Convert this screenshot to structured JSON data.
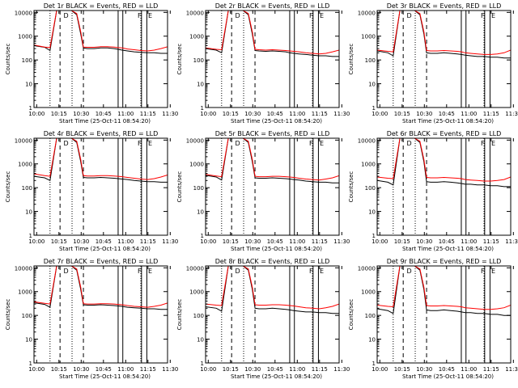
{
  "chart_data": {
    "type": "line",
    "shared": {
      "ylabel": "Counts/sec",
      "xlabel": "Start Time (25-Oct-11 08:54:20)",
      "x_ticks": [
        "10:00",
        "10:15",
        "10:30",
        "10:45",
        "11:00",
        "11:15",
        "11:30"
      ],
      "y_ticks": [
        "1",
        "10",
        "100",
        "1000",
        "10000"
      ],
      "ylim": [
        1,
        12000
      ],
      "xlim_minutes": [
        0,
        100
      ],
      "series_names": [
        "Events",
        "LLD"
      ],
      "series_colors": {
        "Events": "#000000",
        "LLD": "#ff0000"
      },
      "dotted_lines_min": [
        12,
        28.5,
        80
      ],
      "dashed_lines_min": [
        19.5,
        37
      ],
      "solid_lines_min": [
        63,
        66.5,
        80.5,
        84.5
      ],
      "markers": [
        "D",
        "F",
        "E"
      ],
      "sample_times_min": [
        0,
        8,
        12,
        17,
        19,
        20,
        22,
        24,
        26,
        28,
        32,
        35,
        37,
        40,
        45,
        50,
        55,
        60,
        63,
        66,
        70,
        75,
        80,
        85,
        90,
        95,
        100
      ]
    },
    "panels": [
      {
        "title": "Det 1r BLACK = Events, RED = LLD",
        "lld": [
          420,
          350,
          330,
          12000,
          12000,
          12000,
          12000,
          12000,
          12000,
          12000,
          9000,
          1500,
          350,
          340,
          340,
          360,
          360,
          350,
          330,
          320,
          290,
          270,
          250,
          240,
          260,
          300,
          360
        ],
        "events": [
          400,
          340,
          250,
          12000,
          12000,
          12000,
          12000,
          12000,
          12000,
          12000,
          8000,
          1200,
          320,
          300,
          300,
          320,
          320,
          300,
          280,
          260,
          240,
          220,
          210,
          200,
          200,
          190,
          190
        ]
      },
      {
        "title": "Det 2r BLACK = Events, RED = LLD",
        "lld": [
          320,
          280,
          270,
          12000,
          12000,
          12000,
          12000,
          12000,
          12000,
          12000,
          9000,
          1500,
          280,
          270,
          260,
          270,
          260,
          250,
          240,
          230,
          220,
          200,
          190,
          180,
          190,
          220,
          260
        ],
        "events": [
          300,
          260,
          200,
          12000,
          12000,
          12000,
          12000,
          12000,
          12000,
          12000,
          8000,
          1200,
          250,
          240,
          230,
          240,
          230,
          220,
          200,
          190,
          180,
          170,
          160,
          150,
          150,
          140,
          140
        ]
      },
      {
        "title": "Det 3r BLACK = Events, RED = LLD",
        "lld": [
          260,
          230,
          220,
          12000,
          12000,
          12000,
          12000,
          12000,
          12000,
          12000,
          9000,
          1500,
          250,
          240,
          240,
          250,
          240,
          230,
          220,
          200,
          190,
          180,
          170,
          170,
          180,
          200,
          260
        ],
        "events": [
          240,
          200,
          150,
          12000,
          12000,
          12000,
          12000,
          12000,
          12000,
          12000,
          8000,
          1200,
          200,
          190,
          190,
          200,
          190,
          180,
          170,
          160,
          150,
          140,
          140,
          130,
          130,
          120,
          120
        ]
      },
      {
        "title": "Det 4r BLACK = Events, RED = LLD",
        "lld": [
          380,
          320,
          300,
          12000,
          12000,
          12000,
          12000,
          12000,
          12000,
          12000,
          9000,
          1500,
          320,
          310,
          310,
          320,
          320,
          310,
          300,
          290,
          270,
          250,
          230,
          220,
          240,
          280,
          340
        ],
        "events": [
          300,
          260,
          200,
          12000,
          12000,
          12000,
          12000,
          12000,
          12000,
          12000,
          8000,
          1200,
          270,
          260,
          260,
          270,
          260,
          250,
          240,
          230,
          220,
          200,
          190,
          180,
          180,
          170,
          170
        ]
      },
      {
        "title": "Det 5r BLACK = Events, RED = LLD",
        "lld": [
          360,
          310,
          290,
          12000,
          12000,
          12000,
          12000,
          12000,
          12000,
          12000,
          9000,
          1500,
          300,
          290,
          290,
          300,
          300,
          290,
          280,
          270,
          250,
          230,
          220,
          210,
          230,
          260,
          320
        ],
        "events": [
          330,
          280,
          210,
          12000,
          12000,
          12000,
          12000,
          12000,
          12000,
          12000,
          8000,
          1200,
          260,
          250,
          250,
          260,
          250,
          240,
          230,
          220,
          210,
          190,
          180,
          170,
          170,
          160,
          160
        ]
      },
      {
        "title": "Det 6r BLACK = Events, RED = LLD",
        "lld": [
          280,
          250,
          240,
          12000,
          12000,
          12000,
          12000,
          12000,
          12000,
          12000,
          9000,
          1500,
          270,
          260,
          260,
          270,
          260,
          250,
          240,
          220,
          210,
          200,
          190,
          190,
          200,
          220,
          280
        ],
        "events": [
          200,
          170,
          130,
          12000,
          12000,
          12000,
          12000,
          12000,
          12000,
          12000,
          8000,
          1200,
          180,
          170,
          170,
          180,
          170,
          160,
          150,
          140,
          140,
          130,
          130,
          120,
          120,
          110,
          110
        ]
      },
      {
        "title": "Det 7r BLACK = Events, RED = LLD",
        "lld": [
          370,
          320,
          300,
          12000,
          12000,
          12000,
          12000,
          12000,
          12000,
          12000,
          9000,
          1500,
          310,
          300,
          300,
          310,
          310,
          300,
          290,
          280,
          260,
          240,
          230,
          220,
          240,
          270,
          330
        ],
        "events": [
          340,
          290,
          220,
          12000,
          12000,
          12000,
          12000,
          12000,
          12000,
          12000,
          8000,
          1200,
          280,
          270,
          270,
          280,
          270,
          260,
          250,
          240,
          220,
          210,
          200,
          190,
          190,
          180,
          180
        ]
      },
      {
        "title": "Det 8r BLACK = Events, RED = LLD",
        "lld": [
          300,
          270,
          260,
          12000,
          12000,
          12000,
          12000,
          12000,
          12000,
          12000,
          9000,
          1500,
          280,
          270,
          270,
          280,
          280,
          270,
          260,
          250,
          230,
          210,
          200,
          190,
          210,
          240,
          300
        ],
        "events": [
          230,
          200,
          150,
          12000,
          12000,
          12000,
          12000,
          12000,
          12000,
          12000,
          8000,
          1200,
          200,
          190,
          190,
          200,
          190,
          180,
          170,
          160,
          150,
          140,
          140,
          130,
          130,
          120,
          120
        ]
      },
      {
        "title": "Det 9r BLACK = Events, RED = LLD",
        "lld": [
          270,
          240,
          230,
          12000,
          12000,
          12000,
          12000,
          12000,
          12000,
          12000,
          9000,
          1500,
          260,
          250,
          250,
          260,
          250,
          240,
          230,
          210,
          200,
          190,
          180,
          180,
          190,
          210,
          270
        ],
        "events": [
          190,
          160,
          120,
          12000,
          12000,
          12000,
          12000,
          12000,
          12000,
          12000,
          8000,
          1200,
          170,
          160,
          160,
          170,
          160,
          150,
          140,
          130,
          130,
          120,
          120,
          110,
          110,
          100,
          100
        ]
      }
    ]
  }
}
